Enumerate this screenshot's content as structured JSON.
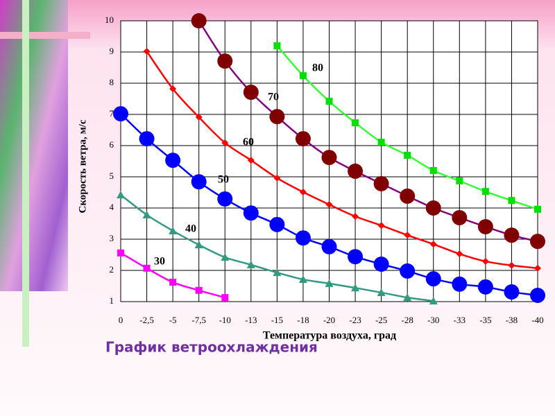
{
  "chart_data": {
    "type": "line",
    "title": "График ветроохлаждения",
    "x_label": "Температура воздуха, град",
    "y_label": "Скорость ветра, м/с",
    "categories": [
      "0",
      "-2,5",
      "-5",
      "-7,5",
      "-10",
      "-13",
      "-15",
      "-18",
      "-20",
      "-23",
      "-25",
      "-28",
      "-30",
      "-33",
      "-35",
      "-38",
      "-40"
    ],
    "ylim": [
      1,
      10
    ],
    "yticks": [
      1,
      2,
      3,
      4,
      5,
      6,
      7,
      8,
      9,
      10
    ],
    "grid": true,
    "series": [
      {
        "name": "30",
        "color": "#ff00ff",
        "marker": "square",
        "values": [
          2.56,
          2.07,
          1.62,
          1.36,
          1.13,
          null,
          null,
          null,
          null,
          null,
          null,
          null,
          null,
          null,
          null,
          null,
          null
        ]
      },
      {
        "name": "40",
        "color": "#339980",
        "marker": "triangle",
        "values": [
          4.42,
          3.78,
          3.27,
          2.82,
          2.42,
          2.18,
          1.93,
          1.71,
          1.58,
          1.44,
          1.29,
          1.13,
          1.02,
          null,
          null,
          null,
          null
        ]
      },
      {
        "name": "50",
        "color": "#0000ff",
        "marker": "circle",
        "values": [
          7.02,
          6.22,
          5.53,
          4.84,
          4.29,
          3.84,
          3.47,
          3.04,
          2.76,
          2.44,
          2.2,
          1.98,
          1.73,
          1.56,
          1.47,
          1.31,
          1.2
        ]
      },
      {
        "name": "60",
        "color": "#ff0000",
        "marker": "diamond",
        "values": [
          null,
          9.02,
          7.82,
          6.91,
          6.09,
          5.53,
          4.96,
          4.51,
          4.11,
          3.73,
          3.44,
          3.13,
          2.84,
          2.53,
          2.29,
          2.16,
          2.07
        ]
      },
      {
        "name": "70",
        "color": "#800000",
        "marker": "circle",
        "values": [
          null,
          null,
          null,
          10,
          8.71,
          7.71,
          6.93,
          6.22,
          5.62,
          5.18,
          4.78,
          4.38,
          4.0,
          3.69,
          3.4,
          3.13,
          2.93
        ]
      },
      {
        "name": "80",
        "color": "#00e000",
        "marker": "square",
        "values": [
          null,
          null,
          null,
          null,
          null,
          null,
          9.2,
          8.24,
          7.42,
          6.73,
          6.11,
          5.69,
          5.2,
          4.87,
          4.53,
          4.24,
          3.96
        ]
      }
    ]
  }
}
